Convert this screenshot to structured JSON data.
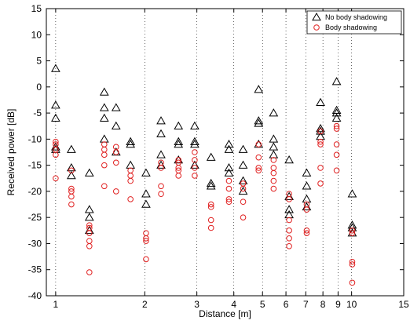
{
  "chart_data": {
    "type": "scatter",
    "title": "",
    "xlabel": "Distance [m]",
    "ylabel": "Received power [dB]",
    "x_scale": "log",
    "xlim": [
      0.93,
      15
    ],
    "ylim": [
      -40,
      15
    ],
    "x_ticks": [
      1,
      2,
      3,
      4,
      5,
      6,
      7,
      8,
      9,
      10,
      15
    ],
    "x_tick_labels": [
      "1",
      "2",
      "3",
      "4",
      "5",
      "6",
      "7",
      "8",
      "9",
      "10",
      "15"
    ],
    "y_ticks": [
      -40,
      -35,
      -30,
      -25,
      -20,
      -15,
      -10,
      -5,
      0,
      5,
      10,
      15
    ],
    "y_tick_labels": [
      "-40",
      "-35",
      "-30",
      "-25",
      "-20",
      "-15",
      "-10",
      "-5",
      "0",
      "5",
      "10",
      "15"
    ],
    "grid": "vertical dotted lines at x ticks",
    "legend": "top-right",
    "series": [
      {
        "name": "No body shadowing",
        "marker": "triangle",
        "color": "#000000",
        "points": [
          [
            1.0,
            3.5
          ],
          [
            1.0,
            -3.5
          ],
          [
            1.0,
            -6.0
          ],
          [
            1.0,
            -11.5
          ],
          [
            1.0,
            -12.0
          ],
          [
            1.13,
            -12.0
          ],
          [
            1.13,
            -15.5
          ],
          [
            1.13,
            -17.0
          ],
          [
            1.3,
            -16.5
          ],
          [
            1.3,
            -23.5
          ],
          [
            1.3,
            -25.0
          ],
          [
            1.3,
            -27.5
          ],
          [
            1.46,
            -1.0
          ],
          [
            1.46,
            -4.0
          ],
          [
            1.46,
            -6.0
          ],
          [
            1.46,
            -10.0
          ],
          [
            1.6,
            -4.0
          ],
          [
            1.6,
            -7.5
          ],
          [
            1.6,
            -12.5
          ],
          [
            1.79,
            -10.5
          ],
          [
            1.79,
            -11.0
          ],
          [
            1.79,
            -15.0
          ],
          [
            2.02,
            -16.5
          ],
          [
            2.02,
            -20.5
          ],
          [
            2.02,
            -22.5
          ],
          [
            2.27,
            -6.5
          ],
          [
            2.27,
            -9.0
          ],
          [
            2.27,
            -13.0
          ],
          [
            2.27,
            -15.0
          ],
          [
            2.6,
            -7.5
          ],
          [
            2.6,
            -10.5
          ],
          [
            2.6,
            -11.0
          ],
          [
            2.6,
            -14.0
          ],
          [
            2.95,
            -7.5
          ],
          [
            2.95,
            -10.5
          ],
          [
            2.95,
            -11.0
          ],
          [
            2.95,
            -15.0
          ],
          [
            3.35,
            -13.5
          ],
          [
            3.35,
            -18.5
          ],
          [
            3.35,
            -19.0
          ],
          [
            3.85,
            -11.0
          ],
          [
            3.85,
            -12.0
          ],
          [
            3.85,
            -15.5
          ],
          [
            3.85,
            -16.5
          ],
          [
            4.3,
            -12.0
          ],
          [
            4.3,
            -15.0
          ],
          [
            4.3,
            -18.0
          ],
          [
            4.3,
            -20.0
          ],
          [
            4.85,
            -0.5
          ],
          [
            4.85,
            -6.5
          ],
          [
            4.85,
            -7.0
          ],
          [
            4.85,
            -11.0
          ],
          [
            5.45,
            -5.0
          ],
          [
            5.45,
            -10.0
          ],
          [
            5.45,
            -11.5
          ],
          [
            5.45,
            -13.0
          ],
          [
            6.15,
            -14.0
          ],
          [
            6.15,
            -21.0
          ],
          [
            6.15,
            -23.5
          ],
          [
            6.15,
            -24.5
          ],
          [
            7.05,
            -16.5
          ],
          [
            7.05,
            -19.0
          ],
          [
            7.05,
            -21.5
          ],
          [
            7.05,
            -23.0
          ],
          [
            7.85,
            -3.0
          ],
          [
            7.85,
            -8.0
          ],
          [
            7.85,
            -8.5
          ],
          [
            7.85,
            -9.5
          ],
          [
            8.9,
            1.0
          ],
          [
            8.9,
            -4.5
          ],
          [
            8.9,
            -5.0
          ],
          [
            8.9,
            -6.0
          ],
          [
            10.05,
            -20.5
          ],
          [
            10.05,
            -26.5
          ],
          [
            10.05,
            -27.0
          ],
          [
            10.05,
            -28.0
          ]
        ]
      },
      {
        "name": "Body shadowing",
        "marker": "circle",
        "color": "#e02020",
        "points": [
          [
            1.0,
            -10.5
          ],
          [
            1.0,
            -11.0
          ],
          [
            1.0,
            -12.0
          ],
          [
            1.0,
            -13.0
          ],
          [
            1.0,
            -17.5
          ],
          [
            1.13,
            -16.0
          ],
          [
            1.13,
            -19.5
          ],
          [
            1.13,
            -20.0
          ],
          [
            1.13,
            -21.0
          ],
          [
            1.13,
            -22.5
          ],
          [
            1.3,
            -26.5
          ],
          [
            1.3,
            -27.0
          ],
          [
            1.3,
            -28.0
          ],
          [
            1.3,
            -29.5
          ],
          [
            1.3,
            -30.5
          ],
          [
            1.3,
            -35.5
          ],
          [
            1.46,
            -11.0
          ],
          [
            1.46,
            -12.0
          ],
          [
            1.46,
            -13.0
          ],
          [
            1.46,
            -15.0
          ],
          [
            1.46,
            -19.0
          ],
          [
            1.6,
            -11.5
          ],
          [
            1.6,
            -12.5
          ],
          [
            1.6,
            -14.5
          ],
          [
            1.6,
            -20.0
          ],
          [
            1.79,
            -16.0
          ],
          [
            1.79,
            -17.0
          ],
          [
            1.79,
            -18.0
          ],
          [
            1.79,
            -21.5
          ],
          [
            2.02,
            -28.0
          ],
          [
            2.02,
            -29.0
          ],
          [
            2.02,
            -29.5
          ],
          [
            2.02,
            -33.0
          ],
          [
            2.27,
            -14.5
          ],
          [
            2.27,
            -15.5
          ],
          [
            2.27,
            -19.0
          ],
          [
            2.27,
            -20.5
          ],
          [
            2.6,
            -14.0
          ],
          [
            2.6,
            -14.5
          ],
          [
            2.6,
            -15.5
          ],
          [
            2.6,
            -16.0
          ],
          [
            2.6,
            -17.0
          ],
          [
            2.95,
            -12.5
          ],
          [
            2.95,
            -14.0
          ],
          [
            2.95,
            -15.5
          ],
          [
            2.95,
            -17.0
          ],
          [
            3.35,
            -22.5
          ],
          [
            3.35,
            -23.0
          ],
          [
            3.35,
            -25.5
          ],
          [
            3.35,
            -27.0
          ],
          [
            3.85,
            -18.0
          ],
          [
            3.85,
            -19.5
          ],
          [
            3.85,
            -21.5
          ],
          [
            3.85,
            -22.0
          ],
          [
            4.3,
            -18.5
          ],
          [
            4.3,
            -19.5
          ],
          [
            4.3,
            -22.0
          ],
          [
            4.3,
            -25.0
          ],
          [
            4.85,
            -11.0
          ],
          [
            4.85,
            -13.5
          ],
          [
            4.85,
            -15.5
          ],
          [
            4.85,
            -16.0
          ],
          [
            5.45,
            -14.0
          ],
          [
            5.45,
            -15.5
          ],
          [
            5.45,
            -16.5
          ],
          [
            5.45,
            -18.0
          ],
          [
            5.45,
            -19.5
          ],
          [
            6.15,
            -20.5
          ],
          [
            6.15,
            -21.5
          ],
          [
            6.15,
            -25.5
          ],
          [
            6.15,
            -27.5
          ],
          [
            6.15,
            -29.0
          ],
          [
            6.15,
            -30.5
          ],
          [
            7.05,
            -22.5
          ],
          [
            7.05,
            -23.5
          ],
          [
            7.05,
            -27.5
          ],
          [
            7.05,
            -28.0
          ],
          [
            7.85,
            -8.5
          ],
          [
            7.85,
            -10.5
          ],
          [
            7.85,
            -11.0
          ],
          [
            7.85,
            -15.5
          ],
          [
            7.85,
            -18.5
          ],
          [
            8.9,
            -7.5
          ],
          [
            8.9,
            -8.0
          ],
          [
            8.9,
            -11.0
          ],
          [
            8.9,
            -13.0
          ],
          [
            8.9,
            -16.0
          ],
          [
            10.05,
            -27.5
          ],
          [
            10.05,
            -28.0
          ],
          [
            10.05,
            -33.5
          ],
          [
            10.05,
            -34.0
          ],
          [
            10.05,
            -37.5
          ]
        ]
      }
    ]
  }
}
